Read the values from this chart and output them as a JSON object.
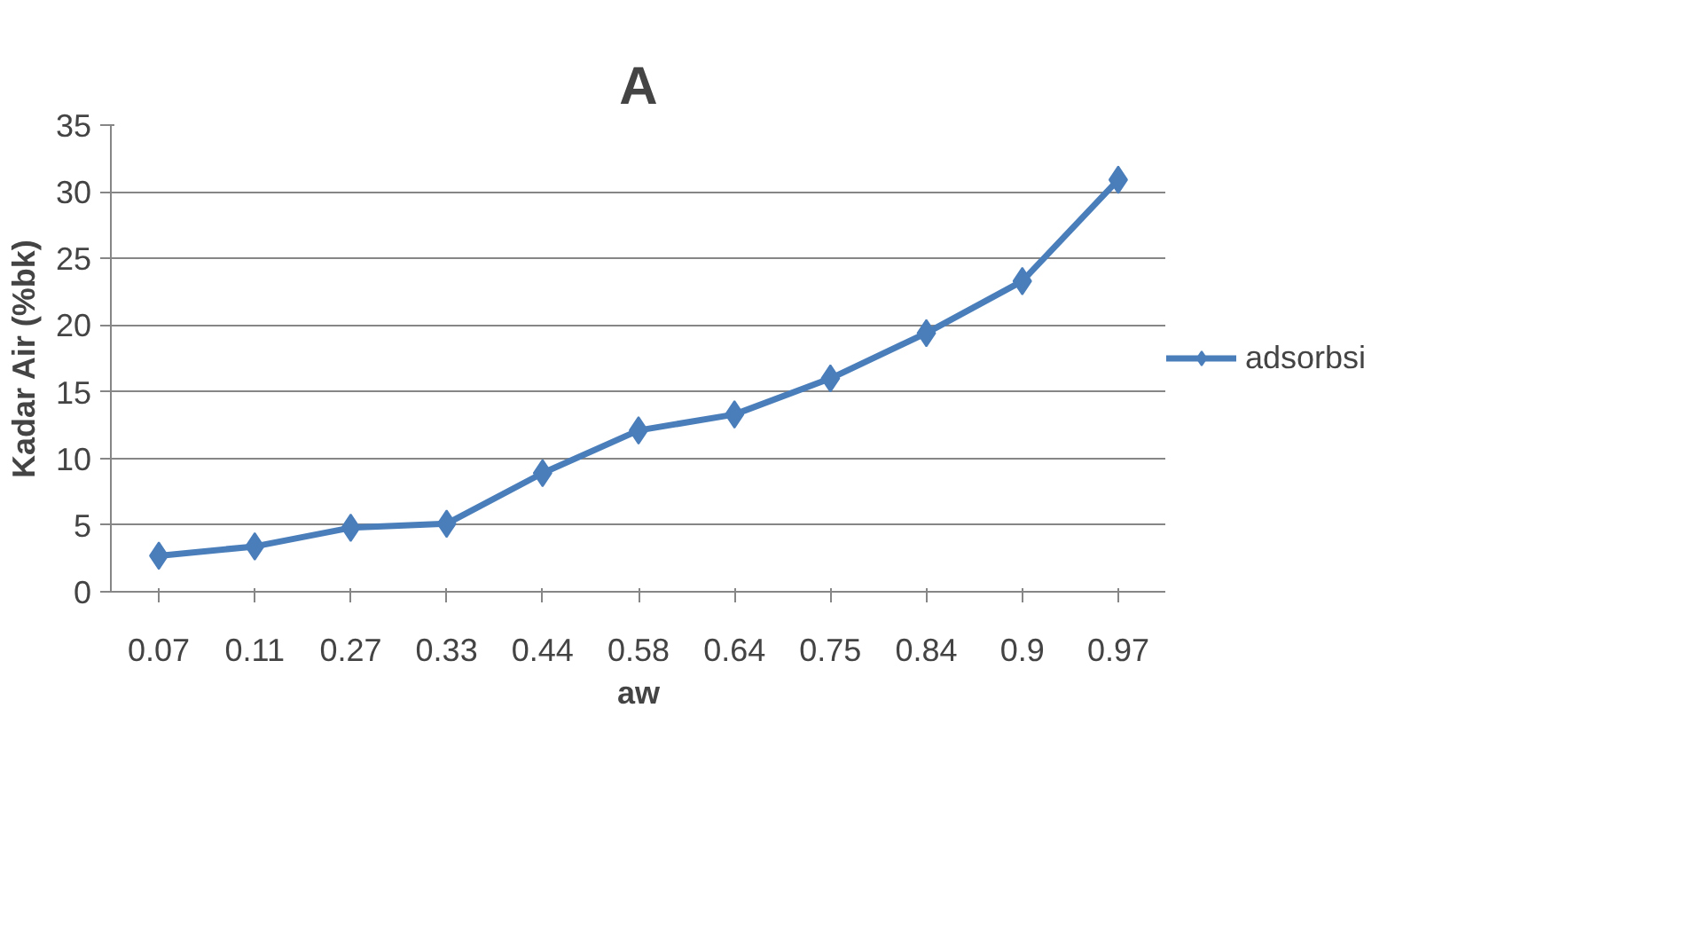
{
  "chart_data": {
    "type": "line",
    "title": "A",
    "xlabel": "aw",
    "ylabel": "Kadar Air (%bk)",
    "categories": [
      "0.07",
      "0.11",
      "0.27",
      "0.33",
      "0.44",
      "0.58",
      "0.64",
      "0.75",
      "0.84",
      "0.9",
      "0.97"
    ],
    "series": [
      {
        "name": "adsorbsi",
        "color": "#4a7ebb",
        "values": [
          2.7,
          3.4,
          4.8,
          5.1,
          8.9,
          12.1,
          13.3,
          16.0,
          19.4,
          23.3,
          30.9
        ]
      }
    ],
    "ylim": [
      0,
      35
    ],
    "yticks": [
      0,
      5,
      10,
      15,
      20,
      25,
      30,
      35
    ],
    "grid": "y",
    "legend": "right",
    "marker": "diamond",
    "line_style": "solid"
  }
}
